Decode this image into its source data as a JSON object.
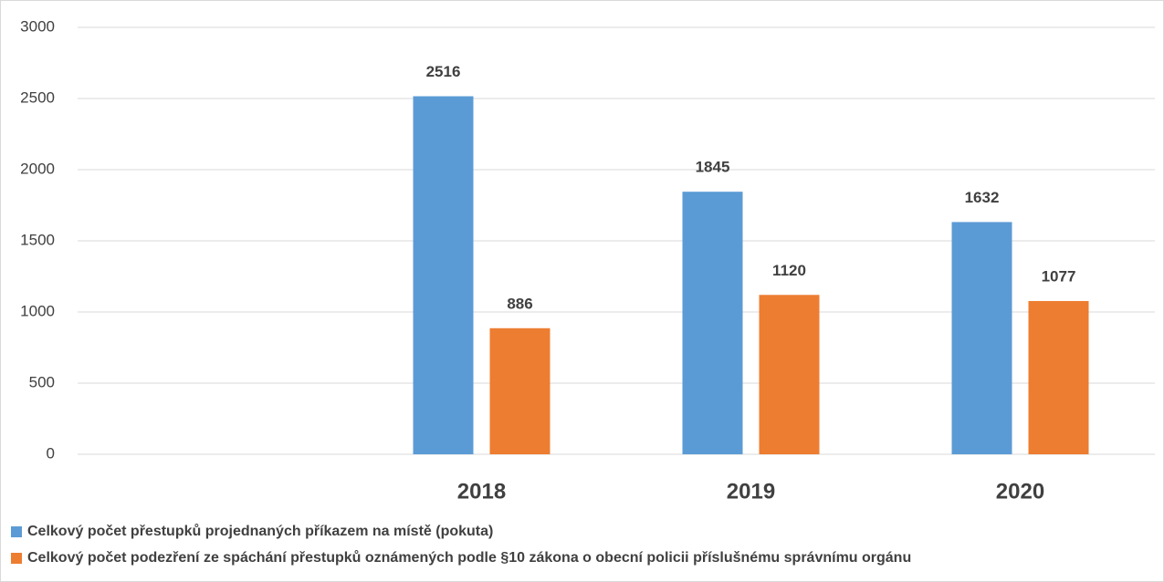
{
  "chart_data": {
    "type": "bar",
    "categories": [
      null,
      "2018",
      "2019",
      "2020"
    ],
    "series": [
      {
        "name": "Celkový počet přestupků projednaných příkazem na místě (pokuta)",
        "color": "#5b9bd5",
        "values": [
          null,
          2516,
          1845,
          1632
        ]
      },
      {
        "name": "Celkový počet podezření ze spáchání přestupků oznámených podle §10 zákona o obecní policii příslušnému správnímu orgánu",
        "color": "#ed7d31",
        "values": [
          null,
          886,
          1120,
          1077
        ]
      }
    ],
    "ylim": [
      0,
      3000
    ],
    "yticks": [
      0,
      500,
      1000,
      1500,
      2000,
      2500,
      3000
    ],
    "grid": true,
    "legend": "bottom"
  }
}
